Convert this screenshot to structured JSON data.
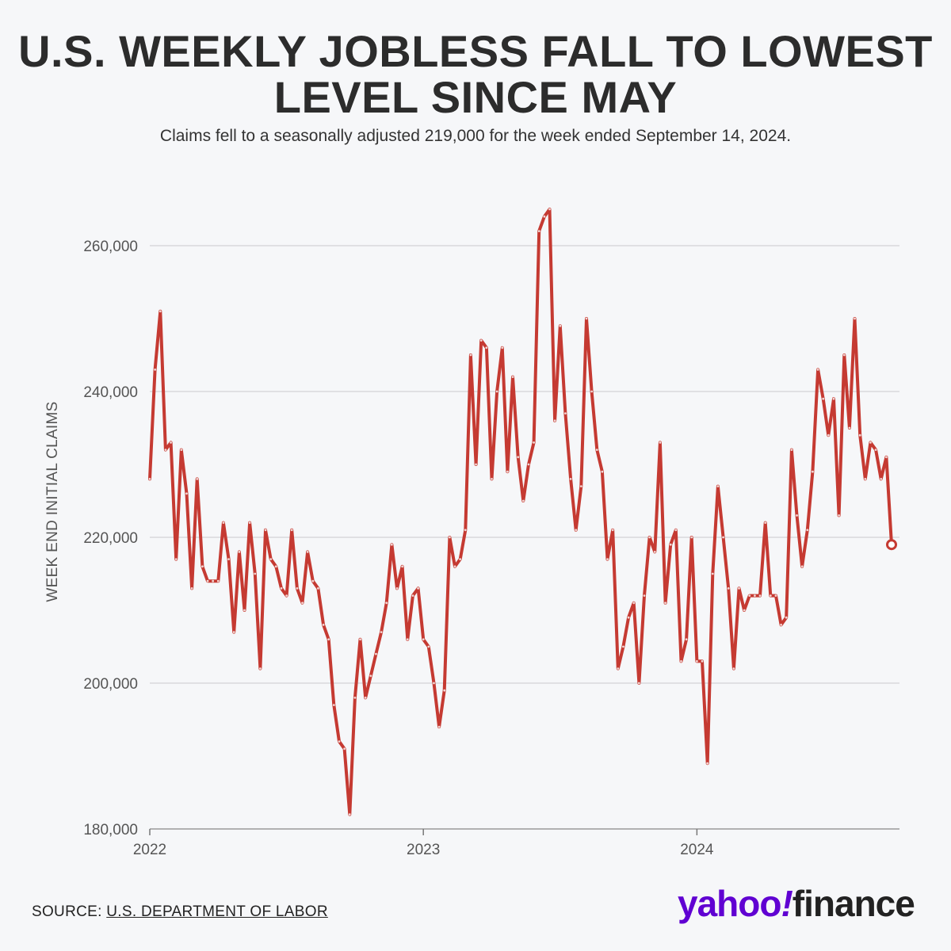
{
  "title_line1": "U.S. WEEKLY JOBLESS FALL TO LOWEST",
  "title_line2": "LEVEL SINCE MAY",
  "subtitle": "Claims fell to a seasonally adjusted 219,000 for the week ended September 14, 2024.",
  "source_label": "SOURCE:",
  "source_link": "U.S. DEPARTMENT OF LABOR",
  "logo": {
    "yahoo": "yahoo",
    "slash": "!",
    "finance": "finance"
  },
  "colors": {
    "line": "#c53a32",
    "grid": "#d8d8dc",
    "background": "#f6f7f9",
    "logo": "#6001d2"
  },
  "chart_data": {
    "type": "line",
    "title": "U.S. WEEKLY JOBLESS FALL TO LOWEST LEVEL SINCE MAY",
    "ylabel": "WEEK END INITIAL CLAIMS",
    "xlabel": "",
    "ylim": [
      180000,
      265000
    ],
    "yticks": [
      180000,
      200000,
      220000,
      240000,
      260000
    ],
    "ytick_labels": [
      "180,000",
      "200,000",
      "220,000",
      "240,000",
      "260,000"
    ],
    "xticks": [
      "2022",
      "2023",
      "2024"
    ],
    "grid": true,
    "series": [
      {
        "values": [
          228000,
          243000,
          251000,
          232000,
          233000,
          217000,
          232000,
          226000,
          213000,
          228000,
          216000,
          214000,
          214000,
          214000,
          222000,
          217000,
          207000,
          218000,
          210000,
          222000,
          215000,
          202000,
          221000,
          217000,
          216000,
          213000,
          212000,
          221000,
          213000,
          211000,
          218000,
          214000,
          213000,
          208000,
          206000,
          197000,
          192000,
          191000,
          182000,
          198000,
          206000,
          198000,
          201000,
          204000,
          207000,
          211000,
          219000,
          213000,
          216000,
          206000,
          212000,
          213000,
          206000,
          205000,
          200000,
          194000,
          199000,
          220000,
          216000,
          217000,
          221000,
          245000,
          230000,
          247000,
          246000,
          228000,
          240000,
          246000,
          229000,
          242000,
          231000,
          225000,
          230000,
          233000,
          262000,
          264000,
          265000,
          236000,
          249000,
          237000,
          228000,
          221000,
          227000,
          250000,
          240000,
          232000,
          229000,
          217000,
          221000,
          202000,
          205000,
          209000,
          211000,
          200000,
          212000,
          220000,
          218000,
          233000,
          211000,
          219000,
          221000,
          203000,
          206000,
          220000,
          203000,
          203000,
          189000,
          215000,
          227000,
          220000,
          213000,
          202000,
          213000,
          210000,
          212000,
          212000,
          212000,
          222000,
          212000,
          212000,
          208000,
          209000,
          232000,
          223000,
          216000,
          221000,
          229000,
          243000,
          239000,
          234000,
          239000,
          223000,
          245000,
          235000,
          250000,
          234000,
          228000,
          233000,
          232000,
          228000,
          231000,
          219000
        ],
        "last_value": 219000
      }
    ]
  }
}
